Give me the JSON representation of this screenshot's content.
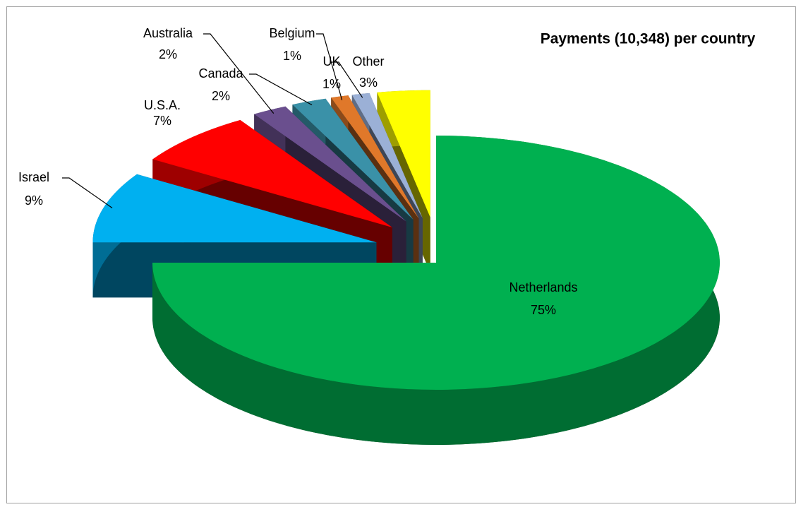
{
  "chart_data": {
    "type": "pie3d",
    "title": "Payments (10,348) per country",
    "categories": [
      "Netherlands",
      "Israel",
      "U.S.A.",
      "Australia",
      "Canada",
      "Belgium",
      "UK",
      "Other"
    ],
    "values": [
      75,
      9,
      7,
      2,
      2,
      1,
      1,
      3
    ],
    "value_labels": [
      "75%",
      "9%",
      "7%",
      "2%",
      "2%",
      "1%",
      "1%",
      "3%"
    ],
    "colors": [
      "#00b050",
      "#00b0f0",
      "#ff0000",
      "#6a4f8e",
      "#3a91a8",
      "#e0782a",
      "#9bb0d6",
      "#ffff00"
    ]
  }
}
